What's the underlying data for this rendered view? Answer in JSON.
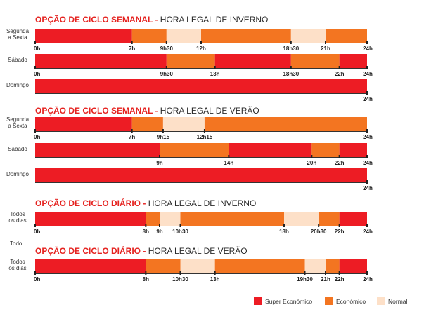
{
  "chart_data": {
    "type": "bar",
    "colors": {
      "super": "#ed1c24",
      "eco": "#f37521",
      "normal": "#fde0c8"
    },
    "legend": {
      "position": "bottom-right",
      "items": [
        {
          "key": "super",
          "label": "Super Económico"
        },
        {
          "key": "eco",
          "label": "Económico"
        },
        {
          "key": "normal",
          "label": "Normal"
        }
      ]
    },
    "sections": [
      {
        "title_red": "OPÇÃO DE CICLO SEMANAL",
        "title_sep": " - ",
        "title_dark": "HORA LEGAL DE INVERNO",
        "rows": [
          {
            "label": [
              "Segunda",
              "a Sexta"
            ],
            "segments": [
              {
                "start": 0,
                "end": 7,
                "tariff": "super"
              },
              {
                "start": 7,
                "end": 9.5,
                "tariff": "eco"
              },
              {
                "start": 9.5,
                "end": 12,
                "tariff": "normal"
              },
              {
                "start": 12,
                "end": 18.5,
                "tariff": "eco"
              },
              {
                "start": 18.5,
                "end": 21,
                "tariff": "normal"
              },
              {
                "start": 21,
                "end": 24,
                "tariff": "eco"
              }
            ],
            "ticks": [
              {
                "h": 0,
                "label": "0h"
              },
              {
                "h": 7,
                "label": "7h"
              },
              {
                "h": 9.5,
                "label": "9h30"
              },
              {
                "h": 12,
                "label": "12h"
              },
              {
                "h": 18.5,
                "label": "18h30"
              },
              {
                "h": 21,
                "label": "21h"
              },
              {
                "h": 24,
                "label": "24h"
              }
            ]
          },
          {
            "label": [
              "Sábado"
            ],
            "segments": [
              {
                "start": 0,
                "end": 9.5,
                "tariff": "super"
              },
              {
                "start": 9.5,
                "end": 13,
                "tariff": "eco"
              },
              {
                "start": 13,
                "end": 18.5,
                "tariff": "super"
              },
              {
                "start": 18.5,
                "end": 22,
                "tariff": "eco"
              },
              {
                "start": 22,
                "end": 24,
                "tariff": "super"
              }
            ],
            "ticks": [
              {
                "h": 0,
                "label": "0h"
              },
              {
                "h": 9.5,
                "label": "9h30"
              },
              {
                "h": 13,
                "label": "13h"
              },
              {
                "h": 18.5,
                "label": "18h30"
              },
              {
                "h": 22,
                "label": "22h"
              },
              {
                "h": 24,
                "label": "24h"
              }
            ]
          },
          {
            "label": [
              "Domingo"
            ],
            "segments": [
              {
                "start": 0,
                "end": 24,
                "tariff": "super"
              }
            ],
            "ticks": [
              {
                "h": 24,
                "label": "24h"
              }
            ]
          }
        ]
      },
      {
        "title_red": "OPÇÃO DE CICLO SEMANAL",
        "title_sep": " - ",
        "title_dark": "HORA LEGAL DE VERÃO",
        "rows": [
          {
            "label": [
              "Segunda",
              "a Sexta"
            ],
            "segments": [
              {
                "start": 0,
                "end": 7,
                "tariff": "super"
              },
              {
                "start": 7,
                "end": 9.25,
                "tariff": "eco"
              },
              {
                "start": 9.25,
                "end": 12.25,
                "tariff": "normal"
              },
              {
                "start": 12.25,
                "end": 24,
                "tariff": "eco"
              }
            ],
            "ticks": [
              {
                "h": 0,
                "label": "0h"
              },
              {
                "h": 7,
                "label": "7h"
              },
              {
                "h": 9.25,
                "label": "9h15"
              },
              {
                "h": 12.25,
                "label": "12h15"
              },
              {
                "h": 24,
                "label": "24h"
              }
            ]
          },
          {
            "label": [
              "Sábado"
            ],
            "segments": [
              {
                "start": 0,
                "end": 9,
                "tariff": "super"
              },
              {
                "start": 9,
                "end": 14,
                "tariff": "eco"
              },
              {
                "start": 14,
                "end": 20,
                "tariff": "super"
              },
              {
                "start": 20,
                "end": 22,
                "tariff": "eco"
              },
              {
                "start": 22,
                "end": 24,
                "tariff": "super"
              }
            ],
            "ticks": [
              {
                "h": 9,
                "label": "9h"
              },
              {
                "h": 14,
                "label": "14h"
              },
              {
                "h": 20,
                "label": "20h"
              },
              {
                "h": 22,
                "label": "22h"
              },
              {
                "h": 24,
                "label": "24h"
              }
            ]
          },
          {
            "label": [
              "Domingo"
            ],
            "segments": [
              {
                "start": 0,
                "end": 24,
                "tariff": "super"
              }
            ],
            "ticks": [
              {
                "h": 24,
                "label": "24h"
              }
            ]
          }
        ]
      },
      {
        "title_red": "OPÇÃO DE CICLO DIÁRIO",
        "title_sep": " - ",
        "title_dark": "HORA LEGAL DE INVERNO",
        "rows": [
          {
            "label": [
              "Todos",
              "os dias"
            ],
            "segments": [
              {
                "start": 0,
                "end": 8,
                "tariff": "super"
              },
              {
                "start": 8,
                "end": 9,
                "tariff": "eco"
              },
              {
                "start": 9,
                "end": 10.5,
                "tariff": "normal"
              },
              {
                "start": 10.5,
                "end": 18,
                "tariff": "eco"
              },
              {
                "start": 18,
                "end": 20.5,
                "tariff": "normal"
              },
              {
                "start": 20.5,
                "end": 22,
                "tariff": "eco"
              },
              {
                "start": 22,
                "end": 24,
                "tariff": "super"
              }
            ],
            "ticks": [
              {
                "h": 0,
                "label": "0h"
              },
              {
                "h": 8,
                "label": "8h"
              },
              {
                "h": 9,
                "label": "9h"
              },
              {
                "h": 10.5,
                "label": "10h30"
              },
              {
                "h": 18,
                "label": "18h"
              },
              {
                "h": 20.5,
                "label": "20h30"
              },
              {
                "h": 22,
                "label": "22h"
              },
              {
                "h": 24,
                "label": "24h"
              }
            ]
          }
        ],
        "stray_label": "Todo"
      },
      {
        "title_red": "OPÇÃO DE CICLO DIÁRIO",
        "title_sep": " - ",
        "title_dark": "HORA LEGAL DE VERÃO",
        "rows": [
          {
            "label": [
              "Todos",
              "os dias"
            ],
            "segments": [
              {
                "start": 0,
                "end": 8,
                "tariff": "super"
              },
              {
                "start": 8,
                "end": 10.5,
                "tariff": "eco"
              },
              {
                "start": 10.5,
                "end": 13,
                "tariff": "normal"
              },
              {
                "start": 13,
                "end": 19.5,
                "tariff": "eco"
              },
              {
                "start": 19.5,
                "end": 21,
                "tariff": "normal"
              },
              {
                "start": 21,
                "end": 22,
                "tariff": "eco"
              },
              {
                "start": 22,
                "end": 24,
                "tariff": "super"
              }
            ],
            "ticks": [
              {
                "h": 0,
                "label": "0h"
              },
              {
                "h": 8,
                "label": "8h"
              },
              {
                "h": 10.5,
                "label": "10h30"
              },
              {
                "h": 13,
                "label": "13h"
              },
              {
                "h": 19.5,
                "label": "19h30"
              },
              {
                "h": 21,
                "label": "21h"
              },
              {
                "h": 22,
                "label": "22h"
              },
              {
                "h": 24,
                "label": "24h"
              }
            ]
          }
        ]
      }
    ]
  }
}
